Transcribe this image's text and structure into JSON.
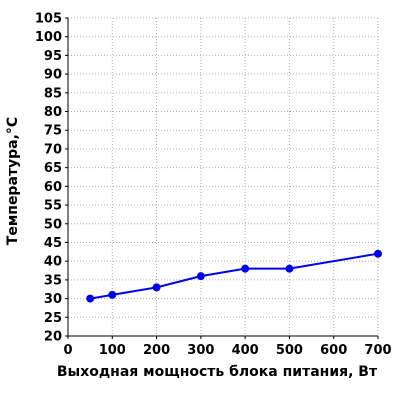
{
  "chart_data": {
    "type": "line",
    "title": "",
    "xlabel": "Выходная мощность блока питания, Вт",
    "ylabel": "Температура,°С",
    "xlim": [
      0,
      700
    ],
    "ylim": [
      20,
      105
    ],
    "xticks": [
      0,
      100,
      200,
      300,
      400,
      500,
      600,
      700
    ],
    "yticks": [
      20,
      25,
      30,
      35,
      40,
      45,
      50,
      55,
      60,
      65,
      70,
      75,
      80,
      85,
      90,
      95,
      100,
      105
    ],
    "grid": true,
    "legend": "none",
    "series": [
      {
        "x": [
          50,
          100,
          200,
          300,
          400,
          500,
          700
        ],
        "y": [
          30,
          31,
          33,
          36,
          38,
          38,
          42
        ],
        "color": "#0000ee",
        "marker": "circle"
      }
    ],
    "colors": {
      "line": "#0000ee",
      "grid": "#b0b0b0",
      "axis": "#000000",
      "tick_text": "#000000"
    }
  }
}
